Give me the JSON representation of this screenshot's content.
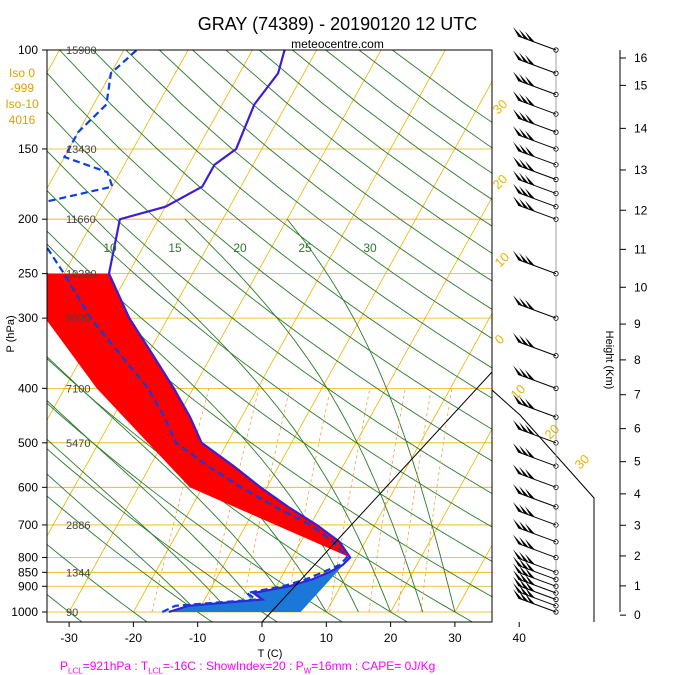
{
  "header": {
    "title": "GRAY (74389) - 20190120 12 UTC",
    "source": "meteocentre.com"
  },
  "side_info": {
    "iso0_label": "Iso 0",
    "iso0_value": "-999",
    "iso10_label": "Iso-10",
    "iso10_value": "4016"
  },
  "footer": {
    "p_lcl": "=921hPa",
    "t_lcl": "=-16C",
    "rest": ": ShowIndex=20 : P",
    "pw": "=16mm : CAPE= 0J/Kg"
  },
  "colors": {
    "temperature": "#3a1fd6",
    "dewpoint": "#0a3ee6",
    "cape_fill": "#ff0000",
    "cin_fill": "#1c78d8",
    "isotherm": "#e8b400",
    "adiabat": "#2a7a2a",
    "mixing_ratio": "#f0a040",
    "footer": "#ff00ff"
  },
  "chart_data": {
    "type": "line",
    "title": "GRAY (74389) - 20190120 12 UTC",
    "xlabel": "T (C)",
    "ylabel": "P (hPa)",
    "y2label": "Height (Km)",
    "y_scale": "log",
    "x_ticks": [
      -30,
      -20,
      -10,
      0,
      10,
      20,
      30,
      40
    ],
    "p_ticks": [
      100,
      150,
      200,
      250,
      300,
      400,
      500,
      600,
      700,
      800,
      850,
      900,
      1000
    ],
    "p_tick_labels": [
      "100",
      "150",
      "200",
      "250",
      "300",
      "400",
      "500",
      "600",
      "700",
      "800",
      "850",
      "900",
      "1000"
    ],
    "height_ticks": [
      0,
      1,
      2,
      3,
      4,
      5,
      6,
      7,
      8,
      9,
      10,
      11,
      12,
      13,
      14,
      15,
      16
    ],
    "geopotential_labels": [
      {
        "p": 100,
        "text": "15980"
      },
      {
        "p": 150,
        "text": "13430"
      },
      {
        "p": 200,
        "text": "11660"
      },
      {
        "p": 250,
        "text": "10280"
      },
      {
        "p": 300,
        "text": "9090"
      },
      {
        "p": 400,
        "text": "7100"
      },
      {
        "p": 500,
        "text": "5470"
      },
      {
        "p": 700,
        "text": "2886"
      },
      {
        "p": 850,
        "text": "1344"
      },
      {
        "p": 1000,
        "text": "90"
      }
    ],
    "adiabat_labels": [
      "10",
      "15",
      "20",
      "25",
      "30"
    ],
    "isotherm_labels": [
      "30",
      "20",
      "10",
      "0",
      "10",
      "20",
      "30"
    ],
    "temperature": [
      {
        "p": 1000,
        "t": -14.5
      },
      {
        "p": 975,
        "t": -12
      },
      {
        "p": 950,
        "t": -1
      },
      {
        "p": 925,
        "t": -3
      },
      {
        "p": 900,
        "t": 2
      },
      {
        "p": 875,
        "t": 5
      },
      {
        "p": 850,
        "t": 7
      },
      {
        "p": 825,
        "t": 8.5
      },
      {
        "p": 800,
        "t": 9
      },
      {
        "p": 750,
        "t": 6
      },
      {
        "p": 700,
        "t": 1
      },
      {
        "p": 650,
        "t": -5
      },
      {
        "p": 600,
        "t": -11
      },
      {
        "p": 550,
        "t": -17
      },
      {
        "p": 500,
        "t": -24
      },
      {
        "p": 450,
        "t": -28
      },
      {
        "p": 400,
        "t": -33
      },
      {
        "p": 350,
        "t": -39
      },
      {
        "p": 300,
        "t": -46
      },
      {
        "p": 250,
        "t": -53
      },
      {
        "p": 200,
        "t": -56
      },
      {
        "p": 190,
        "t": -50
      },
      {
        "p": 175,
        "t": -46
      },
      {
        "p": 160,
        "t": -46
      },
      {
        "p": 150,
        "t": -44
      },
      {
        "p": 125,
        "t": -45
      },
      {
        "p": 110,
        "t": -44
      },
      {
        "p": 100,
        "t": -45
      }
    ],
    "dewpoint": [
      {
        "p": 1000,
        "t": -15.5
      },
      {
        "p": 975,
        "t": -14
      },
      {
        "p": 950,
        "t": -2
      },
      {
        "p": 925,
        "t": -4
      },
      {
        "p": 900,
        "t": 1
      },
      {
        "p": 875,
        "t": 4
      },
      {
        "p": 850,
        "t": 6
      },
      {
        "p": 825,
        "t": 8
      },
      {
        "p": 800,
        "t": 8.5
      },
      {
        "p": 750,
        "t": 5
      },
      {
        "p": 700,
        "t": 0
      },
      {
        "p": 650,
        "t": -7
      },
      {
        "p": 600,
        "t": -14
      },
      {
        "p": 550,
        "t": -21
      },
      {
        "p": 500,
        "t": -28
      },
      {
        "p": 450,
        "t": -32
      },
      {
        "p": 400,
        "t": -37
      },
      {
        "p": 350,
        "t": -44
      },
      {
        "p": 300,
        "t": -52
      },
      {
        "p": 250,
        "t": -60
      },
      {
        "p": 210,
        "t": -68
      },
      {
        "p": 200,
        "t": -74
      },
      {
        "p": 190,
        "t": -72
      },
      {
        "p": 175,
        "t": -60
      },
      {
        "p": 165,
        "t": -62
      },
      {
        "p": 155,
        "t": -70
      },
      {
        "p": 140,
        "t": -70
      },
      {
        "p": 125,
        "t": -68
      },
      {
        "p": 110,
        "t": -70
      },
      {
        "p": 100,
        "t": -68
      }
    ],
    "wind_levels": [
      1000,
      975,
      950,
      925,
      900,
      875,
      850,
      800,
      750,
      700,
      650,
      600,
      550,
      500,
      450,
      400,
      350,
      300,
      250,
      200,
      190,
      180,
      170,
      160,
      150,
      140,
      130,
      120,
      110,
      100
    ]
  }
}
